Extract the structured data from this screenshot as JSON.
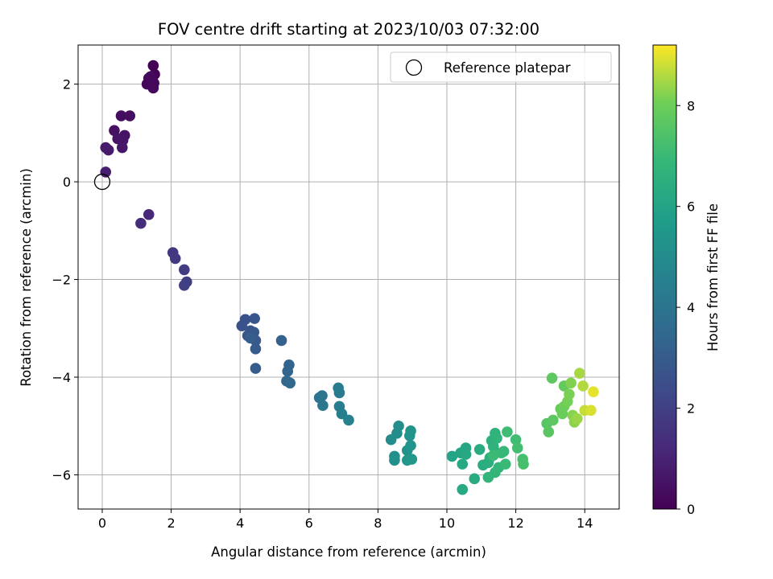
{
  "chart_data": {
    "type": "scatter",
    "title": "FOV centre drift starting at 2023/10/03 07:32:00",
    "xlabel": "Angular distance from reference (arcmin)",
    "ylabel": "Rotation from reference (arcmin)",
    "xlim": [
      -0.7,
      15.0
    ],
    "ylim": [
      -6.7,
      2.8
    ],
    "xticks": [
      0,
      2,
      4,
      6,
      8,
      10,
      12,
      14
    ],
    "yticks": [
      -6,
      -4,
      -2,
      0,
      2
    ],
    "grid": true,
    "legend": {
      "position": "top-right",
      "entries": [
        "Reference platepar"
      ]
    },
    "reference_point": {
      "x": 0,
      "y": 0,
      "label": "Reference platepar",
      "marker": "open-circle"
    },
    "colorbar": {
      "label": "Hours from first FF file",
      "min": 0,
      "max": 9.2,
      "ticks": [
        0,
        2,
        4,
        6,
        8
      ],
      "colormap": "viridis"
    },
    "points": [
      [
        1.48,
        2.38,
        0.03
      ],
      [
        1.52,
        2.2,
        0.06
      ],
      [
        1.35,
        2.12,
        0.09
      ],
      [
        1.45,
        2.1,
        0.12
      ],
      [
        1.3,
        2.0,
        0.15
      ],
      [
        1.5,
        2.02,
        0.18
      ],
      [
        1.48,
        1.92,
        0.21
      ],
      [
        1.4,
        2.15,
        0.24
      ],
      [
        0.55,
        1.35,
        0.35
      ],
      [
        0.8,
        1.35,
        0.4
      ],
      [
        0.35,
        1.05,
        0.45
      ],
      [
        0.65,
        0.95,
        0.5
      ],
      [
        0.45,
        0.88,
        0.55
      ],
      [
        0.6,
        0.85,
        0.6
      ],
      [
        0.58,
        0.7,
        0.65
      ],
      [
        0.1,
        0.7,
        0.72
      ],
      [
        0.18,
        0.65,
        0.78
      ],
      [
        0.1,
        0.2,
        0.85
      ],
      [
        1.35,
        -0.67,
        1.2
      ],
      [
        1.12,
        -0.85,
        1.3
      ],
      [
        2.05,
        -1.45,
        1.7
      ],
      [
        2.12,
        -1.57,
        1.75
      ],
      [
        2.38,
        -1.8,
        1.85
      ],
      [
        2.45,
        -2.05,
        1.9
      ],
      [
        2.38,
        -2.12,
        1.95
      ],
      [
        4.05,
        -2.95,
        2.6
      ],
      [
        4.15,
        -2.82,
        2.65
      ],
      [
        4.3,
        -3.05,
        2.7
      ],
      [
        4.22,
        -3.15,
        2.75
      ],
      [
        4.42,
        -2.8,
        2.8
      ],
      [
        4.4,
        -3.08,
        2.85
      ],
      [
        4.45,
        -3.25,
        2.9
      ],
      [
        4.45,
        -3.42,
        2.95
      ],
      [
        4.45,
        -3.82,
        3.0
      ],
      [
        4.3,
        -3.2,
        3.05
      ],
      [
        5.2,
        -3.25,
        3.2
      ],
      [
        5.42,
        -3.75,
        3.3
      ],
      [
        5.38,
        -3.88,
        3.35
      ],
      [
        5.35,
        -4.08,
        3.4
      ],
      [
        5.45,
        -4.12,
        3.45
      ],
      [
        6.3,
        -4.42,
        4.0
      ],
      [
        6.38,
        -4.38,
        4.05
      ],
      [
        6.4,
        -4.58,
        4.1
      ],
      [
        6.85,
        -4.22,
        4.3
      ],
      [
        6.88,
        -4.32,
        4.35
      ],
      [
        6.88,
        -4.6,
        4.4
      ],
      [
        6.95,
        -4.75,
        4.45
      ],
      [
        7.15,
        -4.88,
        4.5
      ],
      [
        8.38,
        -5.28,
        5.0
      ],
      [
        8.55,
        -5.15,
        5.05
      ],
      [
        8.6,
        -5.0,
        5.1
      ],
      [
        8.48,
        -5.62,
        5.15
      ],
      [
        8.48,
        -5.7,
        5.2
      ],
      [
        8.85,
        -5.5,
        5.25
      ],
      [
        8.95,
        -5.1,
        5.3
      ],
      [
        8.92,
        -5.2,
        5.35
      ],
      [
        8.95,
        -5.4,
        5.4
      ],
      [
        8.85,
        -5.7,
        5.45
      ],
      [
        8.98,
        -5.68,
        5.5
      ],
      [
        10.15,
        -5.62,
        6.0
      ],
      [
        10.4,
        -5.55,
        6.05
      ],
      [
        10.55,
        -5.45,
        6.1
      ],
      [
        10.55,
        -5.58,
        6.15
      ],
      [
        10.45,
        -5.78,
        6.2
      ],
      [
        10.45,
        -6.3,
        6.25
      ],
      [
        10.8,
        -6.08,
        6.3
      ],
      [
        10.95,
        -5.48,
        6.35
      ],
      [
        11.05,
        -5.8,
        6.4
      ],
      [
        11.2,
        -5.75,
        6.45
      ],
      [
        11.25,
        -5.65,
        6.5
      ],
      [
        11.3,
        -5.3,
        6.55
      ],
      [
        11.35,
        -5.42,
        6.6
      ],
      [
        11.4,
        -5.15,
        6.65
      ],
      [
        11.45,
        -5.25,
        6.7
      ],
      [
        11.2,
        -6.05,
        6.75
      ],
      [
        11.4,
        -5.95,
        6.8
      ],
      [
        11.5,
        -5.85,
        6.85
      ],
      [
        11.58,
        -5.55,
        6.9
      ],
      [
        11.65,
        -5.52,
        6.95
      ],
      [
        11.7,
        -5.78,
        7.0
      ],
      [
        11.35,
        -5.6,
        7.05
      ],
      [
        11.75,
        -5.12,
        7.1
      ],
      [
        12.0,
        -5.28,
        7.15
      ],
      [
        12.05,
        -5.45,
        7.2
      ],
      [
        12.2,
        -5.68,
        7.25
      ],
      [
        12.22,
        -5.78,
        7.3
      ],
      [
        12.9,
        -4.95,
        7.6
      ],
      [
        12.95,
        -5.12,
        7.65
      ],
      [
        13.08,
        -4.88,
        7.7
      ],
      [
        13.05,
        -4.02,
        7.75
      ],
      [
        13.4,
        -4.18,
        7.85
      ],
      [
        13.3,
        -4.65,
        7.9
      ],
      [
        13.35,
        -4.75,
        7.95
      ],
      [
        13.4,
        -4.6,
        8.0
      ],
      [
        13.5,
        -4.5,
        8.1
      ],
      [
        13.55,
        -4.35,
        8.15
      ],
      [
        13.6,
        -4.12,
        8.2
      ],
      [
        13.65,
        -4.78,
        8.25
      ],
      [
        13.7,
        -4.92,
        8.3
      ],
      [
        13.78,
        -4.85,
        8.4
      ],
      [
        13.85,
        -3.92,
        8.5
      ],
      [
        13.95,
        -4.18,
        8.6
      ],
      [
        14.0,
        -4.68,
        8.75
      ],
      [
        14.18,
        -4.68,
        8.9
      ],
      [
        14.25,
        -4.3,
        9.0
      ]
    ]
  }
}
